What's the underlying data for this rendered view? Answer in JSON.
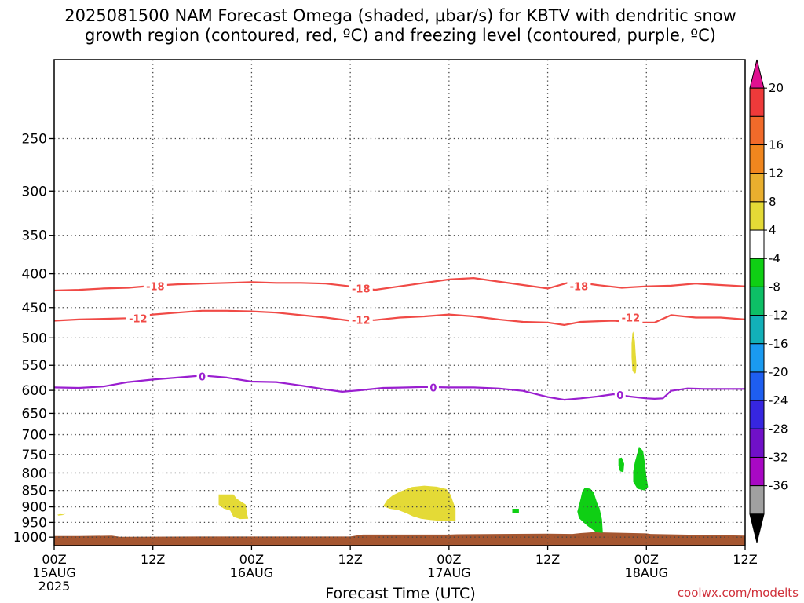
{
  "title_line1": "2025081500 NAM Forecast Omega (shaded, μbar/s) for KBTV with dendritic snow",
  "title_line2": "growth region (contoured, red, ºC) and freezing level (contoured, purple, ºC)",
  "credit": "coolwx.com/modelts",
  "chart_data": {
    "type": "contour",
    "xlabel": "Forecast Time (UTC)",
    "x_range_hours": [
      0,
      84
    ],
    "y_scale": "log-pressure",
    "y_range_mb": [
      190,
      1030
    ],
    "grid": true,
    "y_ticks": [
      "250",
      "300",
      "350",
      "400",
      "450",
      "500",
      "550",
      "600",
      "650",
      "700",
      "750",
      "800",
      "850",
      "900",
      "950",
      "1000"
    ],
    "x_ticks": [
      {
        "hour": 0,
        "line1": "00Z",
        "line2": "15AUG",
        "line3": "2025"
      },
      {
        "hour": 12,
        "line1": "12Z",
        "line2": "",
        "line3": ""
      },
      {
        "hour": 24,
        "line1": "00Z",
        "line2": "16AUG",
        "line3": ""
      },
      {
        "hour": 36,
        "line1": "12Z",
        "line2": "",
        "line3": ""
      },
      {
        "hour": 48,
        "line1": "00Z",
        "line2": "17AUG",
        "line3": ""
      },
      {
        "hour": 60,
        "line1": "12Z",
        "line2": "",
        "line3": ""
      },
      {
        "hour": 72,
        "line1": "00Z",
        "line2": "18AUG",
        "line3": ""
      },
      {
        "hour": 84,
        "line1": "12Z",
        "line2": "",
        "line3": ""
      }
    ],
    "contours": [
      {
        "level": "-18",
        "color": "#f04a46",
        "points": [
          [
            0,
            424
          ],
          [
            3,
            423
          ],
          [
            6,
            421
          ],
          [
            9,
            420
          ],
          [
            12,
            417
          ],
          [
            15,
            415
          ],
          [
            18,
            414
          ],
          [
            21,
            413
          ],
          [
            24,
            412
          ],
          [
            27,
            413
          ],
          [
            30,
            413
          ],
          [
            33,
            414
          ],
          [
            36,
            418
          ],
          [
            39,
            423
          ],
          [
            42,
            418
          ],
          [
            45,
            413
          ],
          [
            48,
            408
          ],
          [
            51,
            406
          ],
          [
            54,
            411
          ],
          [
            57,
            416
          ],
          [
            60,
            421
          ],
          [
            63,
            411
          ],
          [
            66,
            416
          ],
          [
            69,
            420
          ],
          [
            72,
            418
          ],
          [
            75,
            417
          ],
          [
            78,
            414
          ],
          [
            81,
            416
          ],
          [
            84,
            418
          ]
        ],
        "labels": [
          [
            12.3,
            418
          ],
          [
            37.3,
            421
          ],
          [
            63.8,
            418
          ]
        ]
      },
      {
        "level": "-12",
        "color": "#f04a46",
        "points": [
          [
            0,
            471
          ],
          [
            3,
            469
          ],
          [
            6,
            468
          ],
          [
            9,
            467
          ],
          [
            12,
            461
          ],
          [
            15,
            458
          ],
          [
            18,
            455
          ],
          [
            21,
            455
          ],
          [
            24,
            456
          ],
          [
            27,
            458
          ],
          [
            30,
            462
          ],
          [
            33,
            466
          ],
          [
            36,
            471
          ],
          [
            39,
            470
          ],
          [
            42,
            466
          ],
          [
            45,
            464
          ],
          [
            48,
            461
          ],
          [
            51,
            464
          ],
          [
            54,
            469
          ],
          [
            57,
            473
          ],
          [
            60,
            474
          ],
          [
            62,
            478
          ],
          [
            64,
            473
          ],
          [
            68,
            471
          ],
          [
            71,
            474
          ],
          [
            73,
            474
          ],
          [
            75,
            462
          ],
          [
            78,
            466
          ],
          [
            81,
            466
          ],
          [
            84,
            469
          ]
        ],
        "labels": [
          [
            10.2,
            467
          ],
          [
            37.3,
            470
          ],
          [
            70.1,
            466
          ]
        ]
      },
      {
        "level": "0",
        "color": "#9a1ed0",
        "points": [
          [
            0,
            594
          ],
          [
            3,
            595
          ],
          [
            6,
            592
          ],
          [
            9,
            583
          ],
          [
            12,
            578
          ],
          [
            15,
            574
          ],
          [
            18,
            570
          ],
          [
            21,
            574
          ],
          [
            24,
            582
          ],
          [
            27,
            583
          ],
          [
            30,
            590
          ],
          [
            33,
            598
          ],
          [
            35,
            603
          ],
          [
            37,
            600
          ],
          [
            40,
            595
          ],
          [
            43,
            594
          ],
          [
            45,
            593
          ],
          [
            48,
            594
          ],
          [
            51,
            594
          ],
          [
            54,
            596
          ],
          [
            57,
            601
          ],
          [
            60,
            614
          ],
          [
            62,
            620
          ],
          [
            64,
            617
          ],
          [
            66,
            613
          ],
          [
            68,
            608
          ],
          [
            70,
            613
          ],
          [
            72,
            617
          ],
          [
            73,
            618
          ],
          [
            74,
            617
          ],
          [
            75,
            601
          ],
          [
            77,
            596
          ],
          [
            79,
            597
          ],
          [
            81,
            597
          ],
          [
            84,
            597
          ]
        ],
        "labels": [
          [
            18.0,
            572
          ],
          [
            46.1,
            594
          ],
          [
            68.8,
            610
          ]
        ]
      }
    ],
    "omega_regions": [
      {
        "category": "4 to 8",
        "color": "#e4da36",
        "points": [
          [
            1.1,
            924
          ],
          [
            1.4,
            922
          ],
          [
            1.1,
            926
          ],
          [
            0.5,
            928
          ],
          [
            0.4,
            925
          ],
          [
            0.7,
            923
          ]
        ]
      },
      {
        "category": "4 to 8",
        "color": "#e4da36",
        "points": [
          [
            20.0,
            862
          ],
          [
            21.8,
            862
          ],
          [
            22.2,
            875
          ],
          [
            23.3,
            893
          ],
          [
            23.4,
            915
          ],
          [
            23.6,
            938
          ],
          [
            22.6,
            939
          ],
          [
            21.8,
            932
          ],
          [
            21.4,
            912
          ],
          [
            20.6,
            905
          ],
          [
            20.0,
            893
          ]
        ]
      },
      {
        "category": "4 to 8",
        "color": "#e4da36",
        "points": [
          [
            40.0,
            898
          ],
          [
            40.5,
            878
          ],
          [
            41.2,
            864
          ],
          [
            42.2,
            852
          ],
          [
            43.5,
            840
          ],
          [
            45.0,
            836
          ],
          [
            46.5,
            839
          ],
          [
            47.7,
            846
          ],
          [
            48.2,
            863
          ],
          [
            48.5,
            885
          ],
          [
            48.8,
            905
          ],
          [
            48.8,
            945
          ],
          [
            47.3,
            946
          ],
          [
            45.7,
            942
          ],
          [
            44.6,
            938
          ],
          [
            43.6,
            930
          ],
          [
            42.8,
            920
          ],
          [
            41.8,
            910
          ],
          [
            40.8,
            906
          ]
        ]
      },
      {
        "category": "4 to 8",
        "color": "#e4da36",
        "points": [
          [
            70.4,
            489
          ],
          [
            70.6,
            505
          ],
          [
            70.7,
            530
          ],
          [
            70.8,
            550
          ],
          [
            70.7,
            565
          ],
          [
            70.5,
            566
          ],
          [
            70.3,
            560
          ],
          [
            70.2,
            535
          ],
          [
            70.2,
            510
          ],
          [
            70.3,
            492
          ]
        ]
      },
      {
        "category": "-8 to -4",
        "color": "#0fcf14",
        "points": [
          [
            55.7,
            906
          ],
          [
            56.5,
            906
          ],
          [
            56.5,
            920
          ],
          [
            55.7,
            920
          ]
        ]
      },
      {
        "category": "-8 to -4",
        "color": "#0fcf14",
        "points": [
          [
            63.8,
            895
          ],
          [
            64.0,
            875
          ],
          [
            64.2,
            853
          ],
          [
            64.5,
            842
          ],
          [
            65.2,
            845
          ],
          [
            65.6,
            856
          ],
          [
            66.0,
            887
          ],
          [
            66.3,
            905
          ],
          [
            66.6,
            940
          ],
          [
            66.7,
            985
          ],
          [
            65.9,
            983
          ],
          [
            64.8,
            961
          ],
          [
            63.8,
            936
          ],
          [
            63.6,
            915
          ]
        ]
      },
      {
        "category": "-8 to -4",
        "color": "#0fcf14",
        "points": [
          [
            68.6,
            760
          ],
          [
            69.0,
            758
          ],
          [
            69.3,
            775
          ],
          [
            69.2,
            798
          ],
          [
            68.8,
            795
          ],
          [
            68.6,
            780
          ]
        ]
      },
      {
        "category": "-8 to -4",
        "color": "#0fcf14",
        "points": [
          [
            70.4,
            795
          ],
          [
            70.6,
            770
          ],
          [
            70.9,
            746
          ],
          [
            71.1,
            730
          ],
          [
            71.6,
            741
          ],
          [
            71.8,
            770
          ],
          [
            72.0,
            810
          ],
          [
            72.2,
            840
          ],
          [
            71.8,
            850
          ],
          [
            70.9,
            845
          ],
          [
            70.4,
            825
          ]
        ]
      }
    ],
    "terrain": {
      "color": "#a55630",
      "bottom_mb": 1030,
      "top_points": [
        [
          0,
          996
        ],
        [
          3,
          996
        ],
        [
          7,
          995
        ],
        [
          8,
          999
        ],
        [
          18,
          998
        ],
        [
          36,
          998
        ],
        [
          37.5,
          991
        ],
        [
          48,
          991
        ],
        [
          49,
          990
        ],
        [
          60,
          988
        ],
        [
          63,
          989
        ],
        [
          64,
          986
        ],
        [
          65.5,
          983
        ],
        [
          72,
          987
        ],
        [
          72.5,
          989
        ],
        [
          84,
          995
        ]
      ]
    },
    "colorbar": [
      {
        "label": "20",
        "color": "#e01090",
        "shape": "triangle-up"
      },
      {
        "label": "",
        "color": "#ee3a3a"
      },
      {
        "label": "16",
        "color": "#f16a2a"
      },
      {
        "label": "12",
        "color": "#f0861e"
      },
      {
        "label": "8",
        "color": "#e9af2e"
      },
      {
        "label": "4",
        "color": "#e4da36"
      },
      {
        "label": "-4",
        "color": "#ffffff"
      },
      {
        "label": "-8",
        "color": "#0fcf14"
      },
      {
        "label": "-12",
        "color": "#0dbf66"
      },
      {
        "label": "-16",
        "color": "#12b0b8"
      },
      {
        "label": "-20",
        "color": "#1a9af0"
      },
      {
        "label": "-24",
        "color": "#1e5ef0"
      },
      {
        "label": "-28",
        "color": "#3626e0"
      },
      {
        "label": "-32",
        "color": "#7010c8"
      },
      {
        "label": "-36",
        "color": "#a808c4"
      },
      {
        "label": "",
        "color": "#a0a0a0"
      },
      {
        "label": "",
        "color": "#000000",
        "shape": "triangle-down"
      }
    ]
  }
}
